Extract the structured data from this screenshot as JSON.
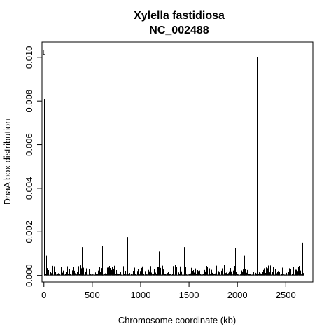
{
  "chart_data": {
    "type": "bar",
    "title": "Xylella fastidiosa",
    "subtitle": "NC_002488",
    "xlabel": "Chromosome coordinate (kb)",
    "ylabel": "DnaA box distribution",
    "xlim": [
      -20,
      2780
    ],
    "ylim": [
      -0.0003,
      0.0107
    ],
    "x_ticks": [
      0,
      500,
      1000,
      1500,
      2000,
      2500
    ],
    "x_tick_labels": [
      "0",
      "500",
      "1000",
      "1500",
      "2000",
      "2500"
    ],
    "y_ticks": [
      0.0,
      0.002,
      0.004,
      0.006,
      0.008,
      0.01
    ],
    "y_tick_labels": [
      "0.000",
      "0.002",
      "0.004",
      "0.006",
      "0.008",
      "0.010"
    ],
    "grid": false,
    "marker": {
      "x": 0,
      "color": "#cc0000",
      "symbol": "↓"
    },
    "x": [
      0,
      25,
      60,
      110,
      180,
      390,
      600,
      860,
      980,
      1000,
      1050,
      1120,
      1190,
      1450,
      1980,
      2070,
      2200,
      2255,
      2350,
      2670
    ],
    "values": [
      0.0081,
      0.0009,
      0.0032,
      0.0009,
      0.0005,
      0.0013,
      0.00135,
      0.00175,
      0.00125,
      0.00145,
      0.0014,
      0.0016,
      0.0011,
      0.0013,
      0.00125,
      0.0009,
      0.01,
      0.0101,
      0.0017,
      0.0015
    ],
    "baseline_noise": true
  }
}
